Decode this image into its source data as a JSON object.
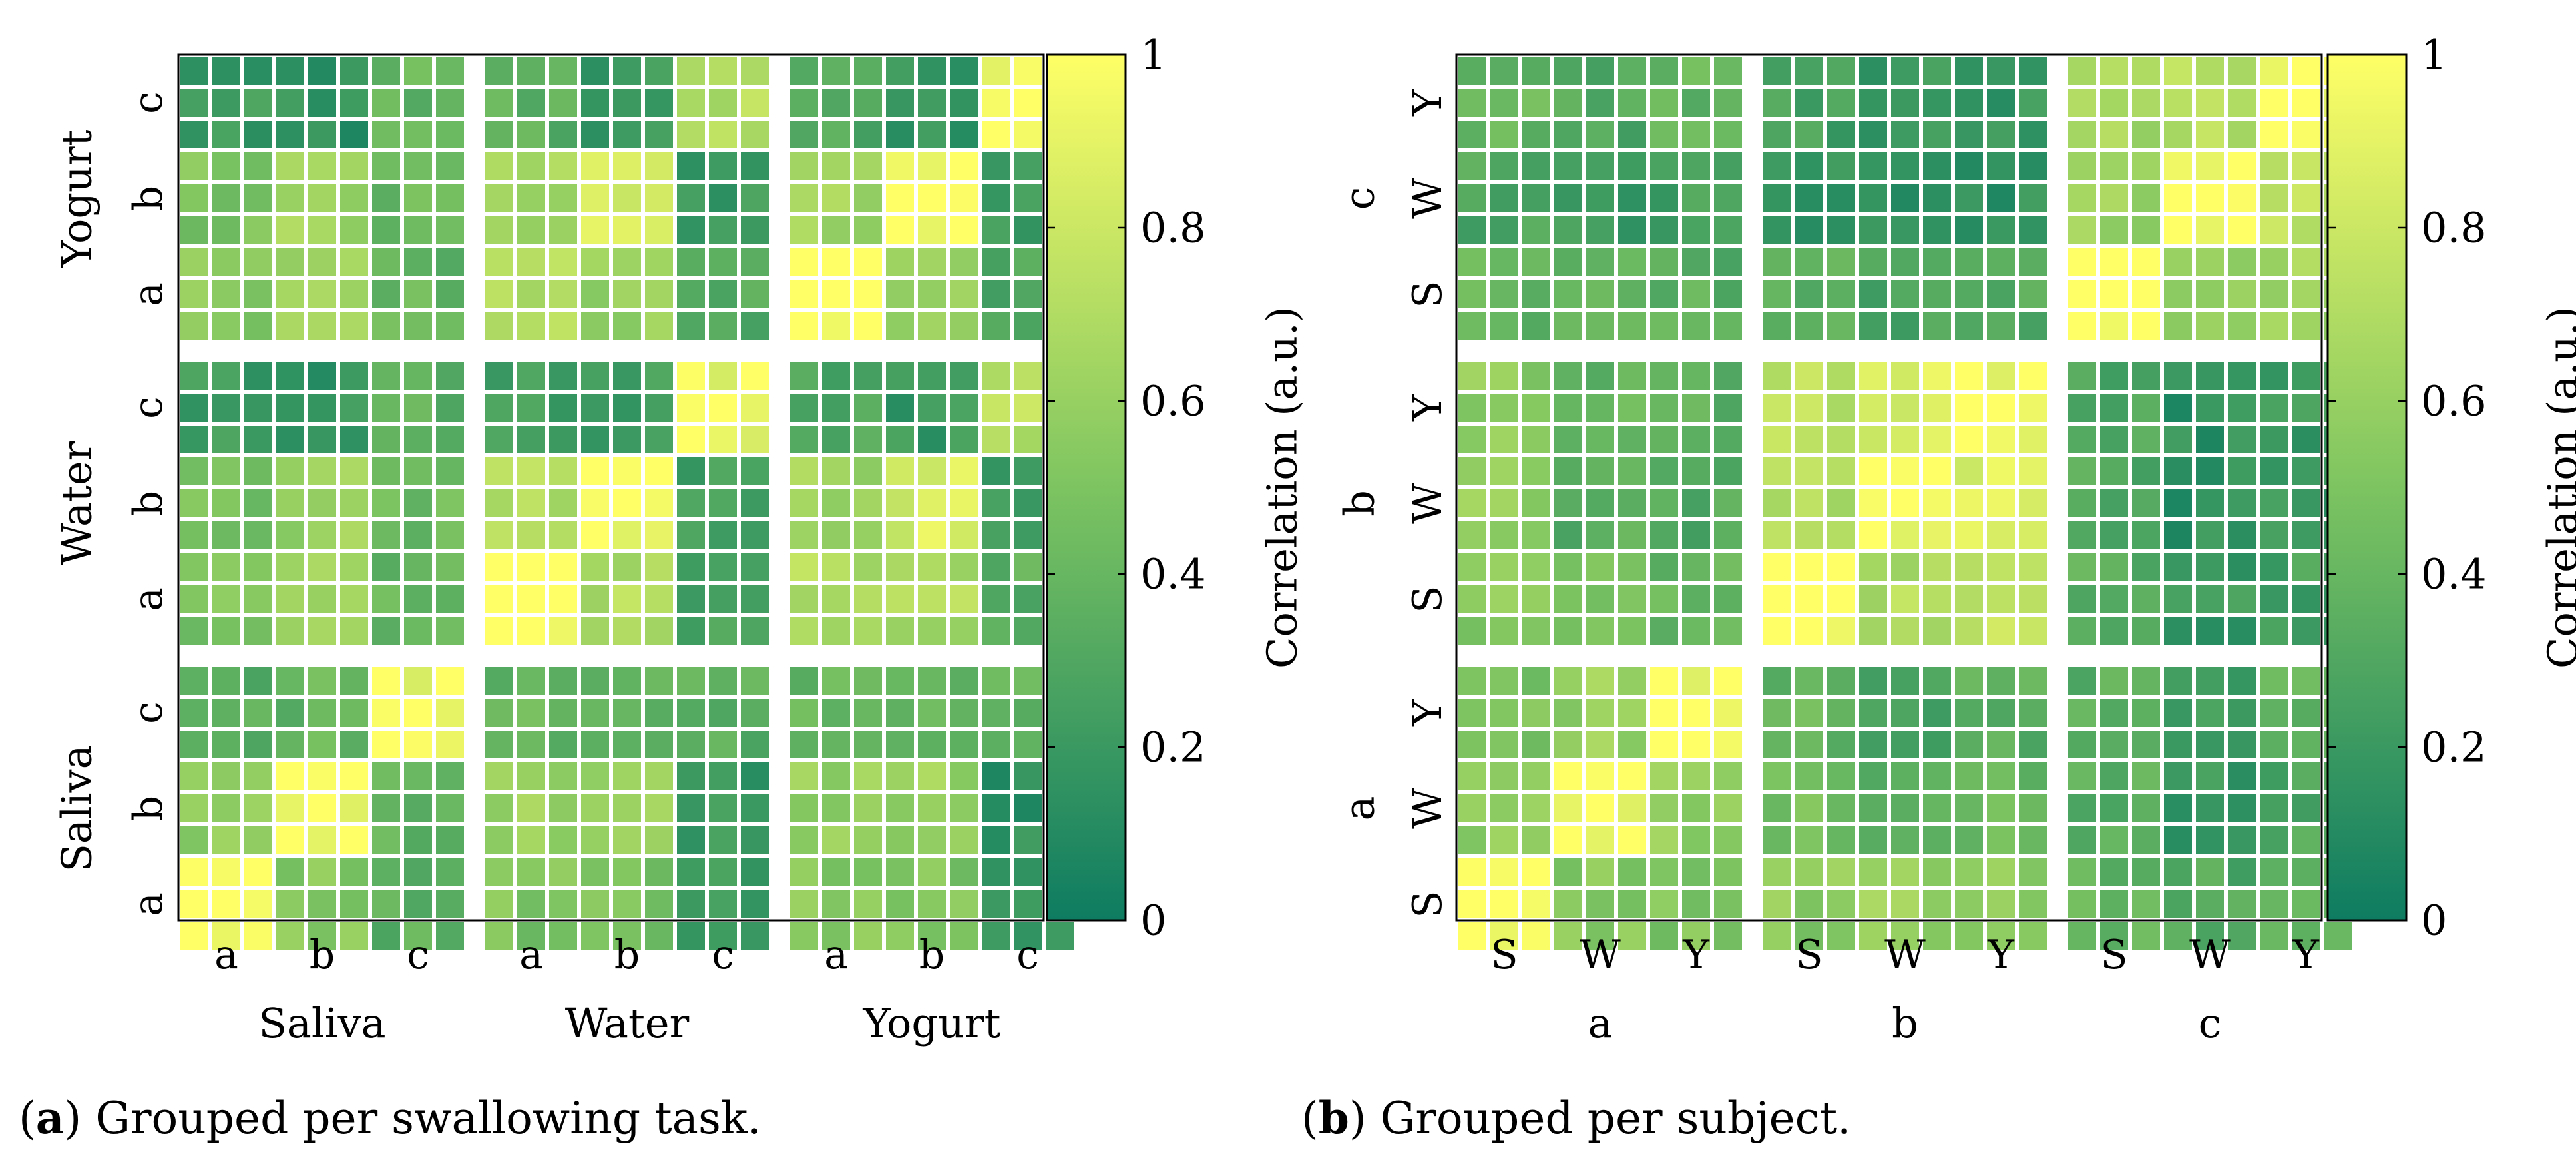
{
  "chart_data": [
    {
      "type": "heatmap",
      "panel_letter": "a",
      "caption": "Grouped per swallowing task.",
      "outer_groups": [
        "Saliva",
        "Water",
        "Yogurt"
      ],
      "inner_groups": [
        "a",
        "b",
        "c"
      ],
      "x_tick_labels": [
        "a",
        "b",
        "c",
        "a",
        "b",
        "c",
        "a",
        "b",
        "c"
      ],
      "x_group_labels": [
        "Saliva",
        "Water",
        "Yogurt"
      ],
      "y_tick_labels": [
        "a",
        "b",
        "c",
        "a",
        "b",
        "c",
        "a",
        "b",
        "c"
      ],
      "y_group_labels": [
        "Saliva",
        "Water",
        "Yogurt"
      ],
      "block_pattern": [
        [
          1.0,
          0.55,
          0.35,
          0.5,
          0.48,
          0.2,
          0.55,
          0.5,
          0.2
        ],
        [
          0.55,
          0.95,
          0.4,
          0.6,
          0.62,
          0.18,
          0.6,
          0.62,
          0.15
        ],
        [
          0.35,
          0.4,
          0.92,
          0.4,
          0.42,
          0.35,
          0.4,
          0.42,
          0.4
        ],
        [
          0.5,
          0.6,
          0.4,
          1.0,
          0.7,
          0.25,
          0.7,
          0.68,
          0.35
        ],
        [
          0.48,
          0.62,
          0.42,
          0.7,
          0.95,
          0.22,
          0.62,
          0.85,
          0.2
        ],
        [
          0.2,
          0.18,
          0.35,
          0.25,
          0.22,
          0.92,
          0.3,
          0.2,
          0.72
        ],
        [
          0.55,
          0.6,
          0.4,
          0.7,
          0.62,
          0.3,
          1.0,
          0.62,
          0.3
        ],
        [
          0.5,
          0.62,
          0.42,
          0.68,
          0.85,
          0.2,
          0.62,
          0.95,
          0.18
        ],
        [
          0.2,
          0.15,
          0.4,
          0.35,
          0.2,
          0.72,
          0.3,
          0.18,
          0.92
        ]
      ],
      "colorbar": {
        "label": "Correlation (a.u.)",
        "range": [
          0,
          1
        ],
        "ticks": [
          "0",
          "0.2",
          "0.4",
          "0.6",
          "0.8",
          "1"
        ]
      }
    },
    {
      "type": "heatmap",
      "panel_letter": "b",
      "caption": "Grouped per subject.",
      "outer_groups": [
        "a",
        "b",
        "c"
      ],
      "inner_groups": [
        "S",
        "W",
        "Y"
      ],
      "x_tick_labels": [
        "S",
        "W",
        "Y",
        "S",
        "W",
        "Y",
        "S",
        "W",
        "Y"
      ],
      "x_group_labels": [
        "a",
        "b",
        "c"
      ],
      "y_tick_labels": [
        "S",
        "W",
        "Y",
        "S",
        "W",
        "Y",
        "S",
        "W",
        "Y"
      ],
      "y_group_labels": [
        "a",
        "b",
        "c"
      ],
      "block_pattern": [
        [
          1.0,
          0.55,
          0.5,
          0.55,
          0.6,
          0.55,
          0.4,
          0.3,
          0.4
        ],
        [
          0.55,
          0.95,
          0.6,
          0.45,
          0.35,
          0.4,
          0.35,
          0.2,
          0.3
        ],
        [
          0.5,
          0.6,
          0.95,
          0.4,
          0.3,
          0.35,
          0.35,
          0.25,
          0.4
        ],
        [
          0.55,
          0.45,
          0.4,
          1.0,
          0.7,
          0.75,
          0.35,
          0.2,
          0.25
        ],
        [
          0.6,
          0.35,
          0.3,
          0.7,
          0.95,
          0.85,
          0.3,
          0.15,
          0.2
        ],
        [
          0.55,
          0.4,
          0.35,
          0.75,
          0.85,
          0.95,
          0.3,
          0.15,
          0.2
        ],
        [
          0.4,
          0.35,
          0.35,
          0.35,
          0.3,
          0.3,
          1.0,
          0.6,
          0.65
        ],
        [
          0.3,
          0.2,
          0.25,
          0.2,
          0.15,
          0.15,
          0.6,
          0.95,
          0.72
        ],
        [
          0.4,
          0.3,
          0.4,
          0.25,
          0.2,
          0.2,
          0.65,
          0.72,
          0.95
        ]
      ],
      "colorbar": {
        "label": "Correlation (a.u.)",
        "range": [
          0,
          1
        ],
        "ticks": [
          "0",
          "0.2",
          "0.4",
          "0.6",
          "0.8",
          "1"
        ]
      }
    }
  ],
  "colors": {
    "low": "#0e7c61",
    "mid": "#7dc461",
    "high": "#ffff66",
    "separator": "#ffffff",
    "axis": "#000000"
  }
}
